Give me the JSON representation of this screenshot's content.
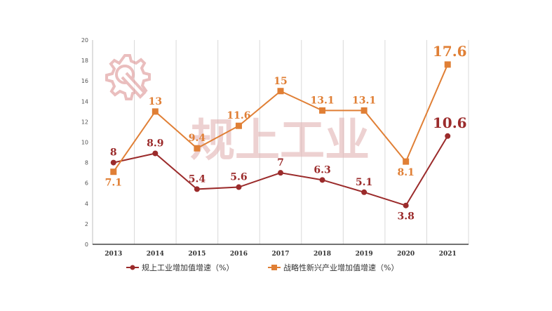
{
  "chart_data": {
    "type": "line",
    "categories": [
      "2013",
      "2014",
      "2015",
      "2016",
      "2017",
      "2018",
      "2019",
      "2020",
      "2021"
    ],
    "ylim": [
      0,
      20
    ],
    "yticks": [
      "0",
      "2",
      "4",
      "6",
      "8",
      "10",
      "12",
      "14",
      "16",
      "18",
      "20"
    ],
    "grid": "vertical",
    "legend_position": "bottom",
    "watermark": "规上工业",
    "series": [
      {
        "name": "规上工业增加值增速（%）",
        "values": [
          8,
          8.9,
          5.4,
          5.6,
          7,
          6.3,
          5.1,
          3.8,
          10.6
        ],
        "labels": [
          "8",
          "8.9",
          "5.4",
          "5.6",
          "7",
          "6.3",
          "5.1",
          "3.8",
          "10.6"
        ],
        "color": "#9b2b2b",
        "marker": "circle"
      },
      {
        "name": "战略性新兴产业增加值增速（%）",
        "values": [
          7.1,
          13,
          9.4,
          11.6,
          15,
          13.1,
          13.1,
          8.1,
          17.6
        ],
        "labels": [
          "7.1",
          "13",
          "9.4",
          "11.6",
          "15",
          "13.1",
          "13.1",
          "8.1",
          "17.6"
        ],
        "color": "#e07f35",
        "marker": "square"
      }
    ]
  }
}
